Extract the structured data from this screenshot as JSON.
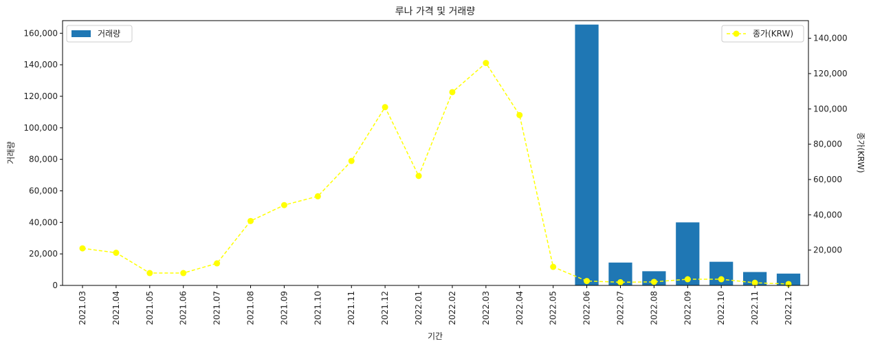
{
  "chart_data": {
    "type": "bar+line",
    "title": "루나 가격 및 거래량",
    "xlabel": "기간",
    "ylabel_left": "거래량",
    "ylabel_right": "종가(KRW)",
    "categories": [
      "2021.03",
      "2021.04",
      "2021.05",
      "2021.06",
      "2021.07",
      "2021.08",
      "2021.09",
      "2021.10",
      "2021.11",
      "2021.12",
      "2022.01",
      "2022.02",
      "2022.03",
      "2022.04",
      "2022.05",
      "2022.06",
      "2022.07",
      "2022.08",
      "2022.09",
      "2022.10",
      "2022.11",
      "2022.12"
    ],
    "series": [
      {
        "name": "거래량",
        "kind": "bar",
        "axis": "left",
        "color": "#1f77b4",
        "values": [
          0,
          0,
          0,
          0,
          0,
          0,
          0,
          0,
          0,
          0,
          0,
          0,
          0,
          0,
          0,
          165500,
          14500,
          9000,
          40000,
          15000,
          8500,
          7500
        ]
      },
      {
        "name": "종가(KRW)",
        "kind": "line",
        "axis": "right",
        "color": "#ffff00",
        "line_style": "dashed",
        "marker": "circle",
        "values": [
          21000,
          18500,
          7000,
          7000,
          12500,
          36500,
          45500,
          50500,
          70500,
          101000,
          62000,
          109500,
          126000,
          96500,
          10500,
          2500,
          1800,
          2000,
          3500,
          3500,
          1500,
          800
        ]
      }
    ],
    "left_axis": {
      "range": [
        0,
        168000
      ],
      "ticks": [
        0,
        20000,
        40000,
        60000,
        80000,
        100000,
        120000,
        140000,
        160000
      ],
      "tick_labels": [
        "0",
        "20,000",
        "40,000",
        "60,000",
        "80,000",
        "100,000",
        "120,000",
        "140,000",
        "160,000"
      ]
    },
    "right_axis": {
      "range": [
        0,
        150000
      ],
      "ticks": [
        20000,
        40000,
        60000,
        80000,
        100000,
        120000,
        140000
      ],
      "tick_labels": [
        "20,000",
        "40,000",
        "60,000",
        "80,000",
        "100,000",
        "120,000",
        "140,000"
      ]
    },
    "grid": false,
    "legend": [
      {
        "label": "거래량",
        "placement": "top-left"
      },
      {
        "label": "종가(KRW)",
        "placement": "top-right"
      }
    ]
  }
}
